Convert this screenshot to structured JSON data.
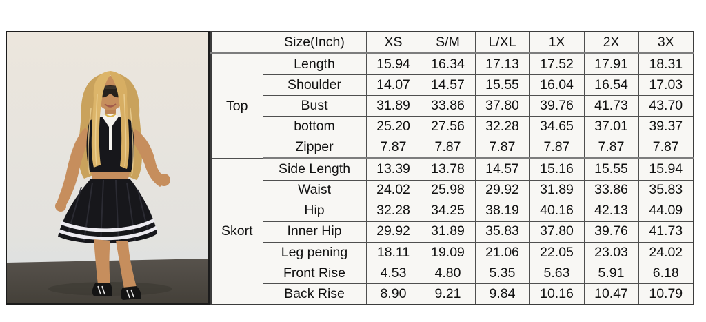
{
  "photo": {
    "description": "Model wearing black sleeveless quarter-zip crop top with white collar and black pleated skort with double white hem stripes, black sneakers, standing against a light wall",
    "colors": {
      "wall": "#e9e4db",
      "wall_lower": "#dde2e6",
      "floor": "#4e4a45",
      "hair": "#cda75f",
      "hair_light": "#e6c87e",
      "skin": "#c68e5d",
      "outfit_black": "#17171b",
      "collar_white": "#f5f3ef",
      "stripe_white": "#eceaf0",
      "shoe_black": "#141414",
      "border": "#1c1c1c"
    }
  },
  "size_chart": {
    "unit_header": "Size(Inch)",
    "size_columns": [
      "XS",
      "S/M",
      "L/XL",
      "1X",
      "2X",
      "3X"
    ],
    "groups": [
      {
        "label": "Top",
        "rows": [
          {
            "label": "Length",
            "values": [
              "15.94",
              "16.34",
              "17.13",
              "17.52",
              "17.91",
              "18.31"
            ]
          },
          {
            "label": "Shoulder",
            "values": [
              "14.07",
              "14.57",
              "15.55",
              "16.04",
              "16.54",
              "17.03"
            ]
          },
          {
            "label": "Bust",
            "values": [
              "31.89",
              "33.86",
              "37.80",
              "39.76",
              "41.73",
              "43.70"
            ]
          },
          {
            "label": "bottom",
            "values": [
              "25.20",
              "27.56",
              "32.28",
              "34.65",
              "37.01",
              "39.37"
            ]
          },
          {
            "label": "Zipper",
            "values": [
              "7.87",
              "7.87",
              "7.87",
              "7.87",
              "7.87",
              "7.87"
            ]
          }
        ]
      },
      {
        "label": "Skort",
        "rows": [
          {
            "label": "Side Length",
            "values": [
              "13.39",
              "13.78",
              "14.57",
              "15.16",
              "15.55",
              "15.94"
            ]
          },
          {
            "label": "Waist",
            "values": [
              "24.02",
              "25.98",
              "29.92",
              "31.89",
              "33.86",
              "35.83"
            ]
          },
          {
            "label": "Hip",
            "values": [
              "32.28",
              "34.25",
              "38.19",
              "40.16",
              "42.13",
              "44.09"
            ]
          },
          {
            "label": "Inner Hip",
            "values": [
              "29.92",
              "31.89",
              "35.83",
              "37.80",
              "39.76",
              "41.73"
            ]
          },
          {
            "label": "Leg pening",
            "values": [
              "18.11",
              "19.09",
              "21.06",
              "22.05",
              "23.03",
              "24.02"
            ]
          },
          {
            "label": "Front Rise",
            "values": [
              "4.53",
              "4.80",
              "5.35",
              "5.63",
              "5.91",
              "6.18"
            ]
          },
          {
            "label": "Back Rise",
            "values": [
              "8.90",
              "9.21",
              "9.84",
              "10.16",
              "10.47",
              "10.79"
            ]
          }
        ]
      }
    ]
  }
}
